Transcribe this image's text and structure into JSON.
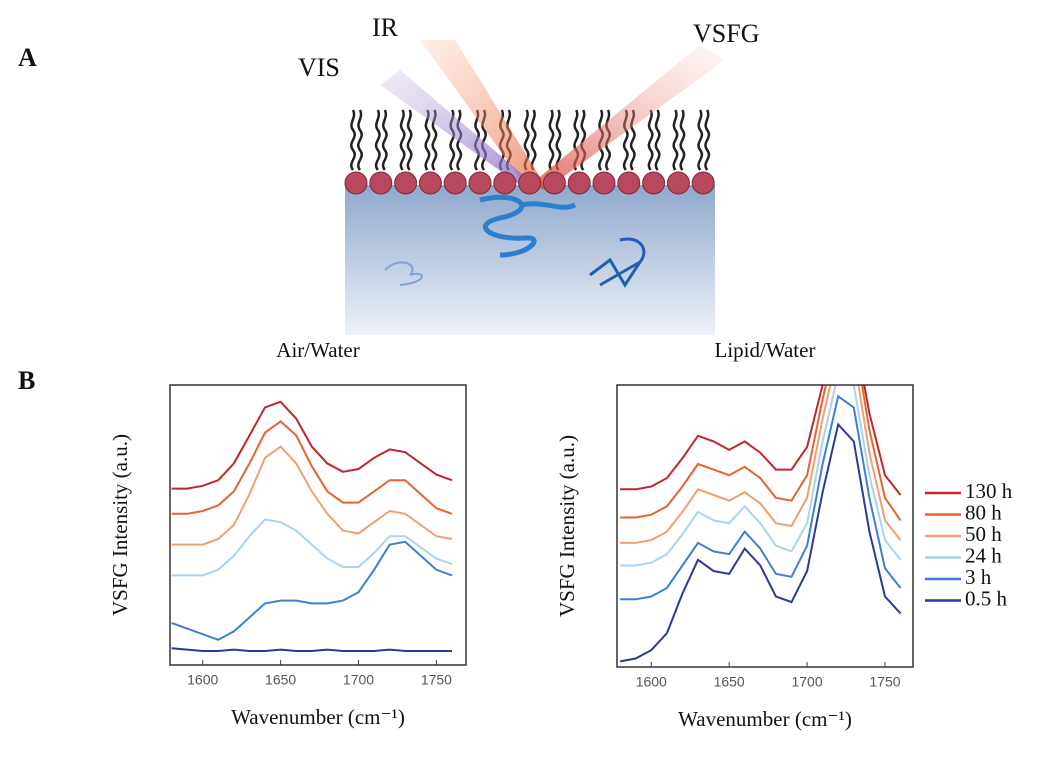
{
  "figure": {
    "panel_a": "A",
    "panel_b": "B",
    "beams": {
      "vis": "VIS",
      "ir": "IR",
      "vsfg": "VSFG"
    }
  },
  "chart_data": [
    {
      "type": "line",
      "title": "Air/Water",
      "y_label": "VSFG Intensity (a.u.)",
      "x_label": "Wavenumber (cm⁻¹)",
      "xlim": [
        1579,
        1769
      ],
      "ylim": [
        0,
        10
      ],
      "xticks": [
        1600,
        1650,
        1700,
        1750
      ],
      "x": [
        1580,
        1590,
        1600,
        1610,
        1620,
        1630,
        1640,
        1650,
        1660,
        1670,
        1680,
        1690,
        1700,
        1710,
        1720,
        1730,
        1740,
        1750,
        1760
      ],
      "series": [
        {
          "color": "#c0262b",
          "values": [
            6.3,
            6.3,
            6.4,
            6.6,
            7.2,
            8.2,
            9.2,
            9.4,
            8.8,
            7.8,
            7.2,
            6.9,
            7.0,
            7.4,
            7.7,
            7.6,
            7.2,
            6.8,
            6.6
          ]
        },
        {
          "color": "#e5642f",
          "values": [
            5.4,
            5.4,
            5.5,
            5.7,
            6.2,
            7.2,
            8.3,
            8.7,
            8.2,
            7.1,
            6.2,
            5.8,
            5.8,
            6.2,
            6.6,
            6.6,
            6.1,
            5.6,
            5.4
          ]
        },
        {
          "color": "#f0a070",
          "values": [
            4.3,
            4.3,
            4.3,
            4.5,
            5.0,
            6.1,
            7.4,
            7.8,
            7.2,
            6.2,
            5.4,
            4.8,
            4.7,
            5.1,
            5.5,
            5.4,
            5.0,
            4.6,
            4.5
          ]
        },
        {
          "color": "#a8d4f0",
          "values": [
            3.2,
            3.2,
            3.2,
            3.4,
            3.9,
            4.6,
            5.2,
            5.1,
            4.8,
            4.3,
            3.8,
            3.5,
            3.5,
            4.0,
            4.6,
            4.6,
            4.2,
            3.8,
            3.6
          ]
        },
        {
          "color": "#3d7fd6",
          "values": [
            1.5,
            1.3,
            1.1,
            0.9,
            1.2,
            1.7,
            2.2,
            2.3,
            2.3,
            2.2,
            2.2,
            2.3,
            2.6,
            3.4,
            4.3,
            4.4,
            3.9,
            3.4,
            3.2
          ]
        },
        {
          "color": "#2b3a9a",
          "values": [
            0.6,
            0.55,
            0.5,
            0.5,
            0.55,
            0.5,
            0.5,
            0.55,
            0.5,
            0.5,
            0.55,
            0.5,
            0.5,
            0.5,
            0.55,
            0.5,
            0.5,
            0.5,
            0.5
          ]
        }
      ]
    },
    {
      "type": "line",
      "title": "Lipid/Water",
      "y_label": "VSFG Intensity (a.u.)",
      "x_label": "Wavenumber (cm⁻¹)",
      "xlim": [
        1578,
        1768
      ],
      "ylim": [
        0,
        10
      ],
      "xticks": [
        1600,
        1650,
        1700,
        1750
      ],
      "legend": "right",
      "x": [
        1580,
        1590,
        1600,
        1610,
        1620,
        1630,
        1640,
        1650,
        1660,
        1670,
        1680,
        1690,
        1700,
        1710,
        1720,
        1730,
        1740,
        1750,
        1760
      ],
      "series": [
        {
          "name": "130 h",
          "color": "#c0262b",
          "values": [
            6.3,
            6.3,
            6.4,
            6.7,
            7.4,
            8.2,
            8.0,
            7.7,
            8.0,
            7.6,
            7.0,
            7.0,
            7.8,
            10.0,
            12.0,
            12.0,
            9.0,
            6.8,
            6.1
          ]
        },
        {
          "name": "80 h",
          "color": "#e5642f",
          "values": [
            5.3,
            5.3,
            5.4,
            5.7,
            6.4,
            7.2,
            7.0,
            6.8,
            7.1,
            6.7,
            6.0,
            5.9,
            6.8,
            9.5,
            11.8,
            11.8,
            8.4,
            6.0,
            5.2
          ]
        },
        {
          "name": "50 h",
          "color": "#f0a070",
          "values": [
            4.4,
            4.4,
            4.5,
            4.8,
            5.5,
            6.3,
            6.1,
            5.9,
            6.2,
            5.8,
            5.1,
            5.0,
            6.0,
            8.8,
            11.2,
            11.0,
            7.6,
            5.2,
            4.5
          ]
        },
        {
          "name": "24 h",
          "color": "#a8d4f0",
          "values": [
            3.6,
            3.6,
            3.7,
            4.0,
            4.7,
            5.5,
            5.2,
            5.1,
            5.7,
            5.1,
            4.3,
            4.1,
            5.1,
            8.0,
            10.4,
            10.0,
            6.8,
            4.5,
            3.8
          ]
        },
        {
          "name": "3 h",
          "color": "#3d7fd6",
          "values": [
            2.4,
            2.4,
            2.5,
            2.8,
            3.6,
            4.4,
            4.1,
            4.0,
            4.8,
            4.2,
            3.3,
            3.2,
            4.3,
            7.2,
            9.6,
            9.2,
            6.0,
            3.5,
            2.8
          ]
        },
        {
          "name": "0.5 h",
          "color": "#2b3a9a",
          "values": [
            0.2,
            0.3,
            0.6,
            1.2,
            2.6,
            3.8,
            3.4,
            3.3,
            4.2,
            3.6,
            2.5,
            2.3,
            3.4,
            6.2,
            8.6,
            8.0,
            4.8,
            2.5,
            1.9
          ]
        }
      ]
    }
  ]
}
